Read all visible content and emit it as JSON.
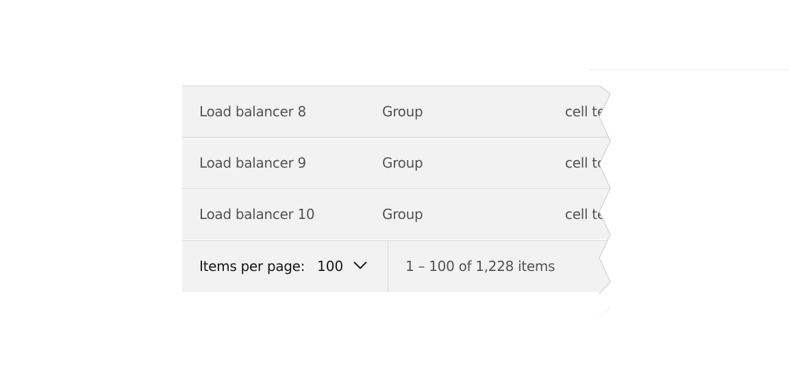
{
  "table": {
    "rows": [
      {
        "name": "Load balancer 8",
        "type": "Group",
        "value": "cell text"
      },
      {
        "name": "Load balancer 9",
        "type": "Group",
        "value": "cell text"
      },
      {
        "name": "Load balancer 10",
        "type": "Group",
        "value": "cell text"
      }
    ]
  },
  "pagination": {
    "items_per_page_label": "Items per page:",
    "items_per_page_value": "100",
    "range_text": "1 – 100 of 1,228 items",
    "dropdown_icon": "chevron-down-icon"
  }
}
